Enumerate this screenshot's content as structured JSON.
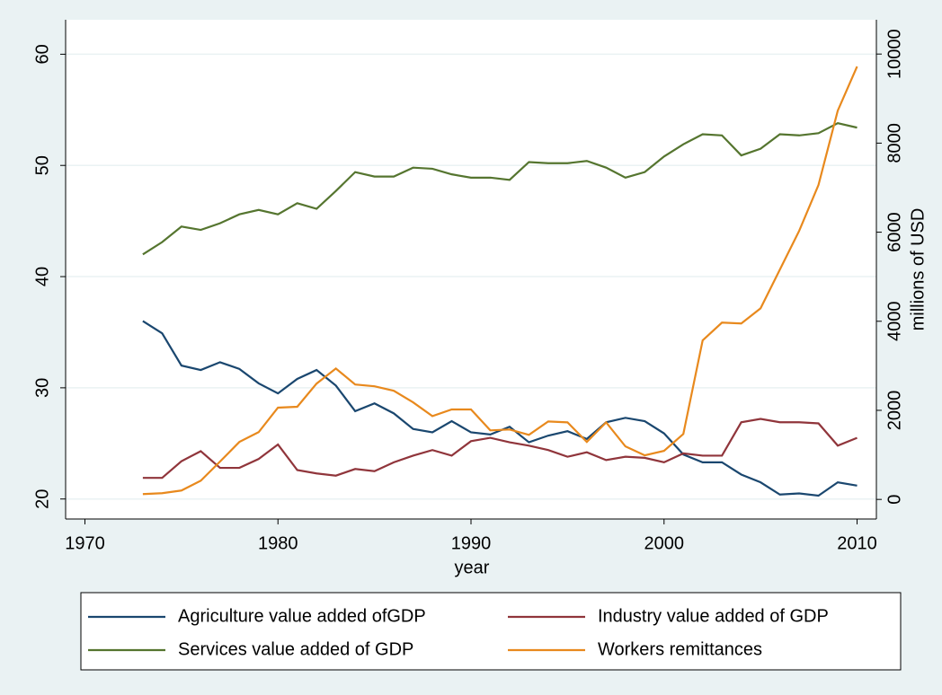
{
  "chart_data": {
    "type": "line",
    "xlabel": "year",
    "y2label": "millions of USD",
    "x": [
      1973,
      1974,
      1975,
      1976,
      1977,
      1978,
      1979,
      1980,
      1981,
      1982,
      1983,
      1984,
      1985,
      1986,
      1987,
      1988,
      1989,
      1990,
      1991,
      1992,
      1993,
      1994,
      1995,
      1996,
      1997,
      1998,
      1999,
      2000,
      2001,
      2002,
      2003,
      2004,
      2005,
      2006,
      2007,
      2008,
      2009,
      2010
    ],
    "xlim": [
      1969,
      2011
    ],
    "xticks": [
      1970,
      1980,
      1990,
      2000,
      2010
    ],
    "ylim": [
      18.2,
      63.1
    ],
    "yticks": [
      20,
      30,
      40,
      50,
      60
    ],
    "y2lim": [
      -440,
      10770
    ],
    "y2ticks": [
      0,
      2000,
      4000,
      6000,
      8000,
      10000
    ],
    "grid": true,
    "legend": "bottom",
    "series": [
      {
        "name": "Agriculture value added ofGDP",
        "color": "#1a476f",
        "values": [
          36.0,
          34.9,
          32.0,
          31.6,
          32.3,
          31.7,
          30.4,
          29.5,
          30.8,
          31.6,
          30.2,
          27.9,
          28.6,
          27.7,
          26.3,
          26.0,
          27.0,
          26.0,
          25.8,
          26.5,
          25.1,
          25.7,
          26.1,
          25.4,
          26.9,
          27.3,
          27.0,
          25.9,
          24.0,
          23.3,
          23.3,
          22.2,
          21.5,
          20.4,
          20.5,
          20.3,
          21.5,
          21.2
        ]
      },
      {
        "name": "Industry value added of GDP",
        "color": "#90353b",
        "values": [
          21.9,
          21.9,
          23.4,
          24.3,
          22.8,
          22.8,
          23.6,
          24.9,
          22.6,
          22.3,
          22.1,
          22.7,
          22.5,
          23.3,
          23.9,
          24.4,
          23.9,
          25.2,
          25.5,
          25.1,
          24.8,
          24.4,
          23.8,
          24.2,
          23.5,
          23.8,
          23.7,
          23.3,
          24.1,
          23.9,
          23.9,
          26.9,
          27.2,
          26.9,
          26.9,
          26.8,
          24.8,
          25.5
        ]
      },
      {
        "name": "Services value added of GDP",
        "color": "#55752f",
        "values": [
          42.0,
          43.1,
          44.5,
          44.2,
          44.8,
          45.6,
          46.0,
          45.6,
          46.6,
          46.1,
          47.7,
          49.4,
          49.0,
          49.0,
          49.8,
          49.7,
          49.2,
          48.9,
          48.9,
          48.7,
          50.3,
          50.2,
          50.2,
          50.4,
          49.8,
          48.9,
          49.4,
          50.8,
          51.9,
          52.8,
          52.7,
          50.9,
          51.5,
          52.8,
          52.7,
          52.9,
          53.8,
          53.4
        ]
      },
      {
        "name": "Workers remittances",
        "color": "#e8891d",
        "axis": "y2",
        "values": [
          120,
          140,
          200,
          420,
          850,
          1290,
          1510,
          2060,
          2080,
          2600,
          2940,
          2580,
          2540,
          2440,
          2180,
          1870,
          2020,
          2020,
          1550,
          1570,
          1450,
          1750,
          1730,
          1290,
          1730,
          1190,
          990,
          1090,
          1470,
          3570,
          3970,
          3950,
          4290,
          5160,
          6030,
          7060,
          8730,
          9720
        ]
      }
    ]
  }
}
